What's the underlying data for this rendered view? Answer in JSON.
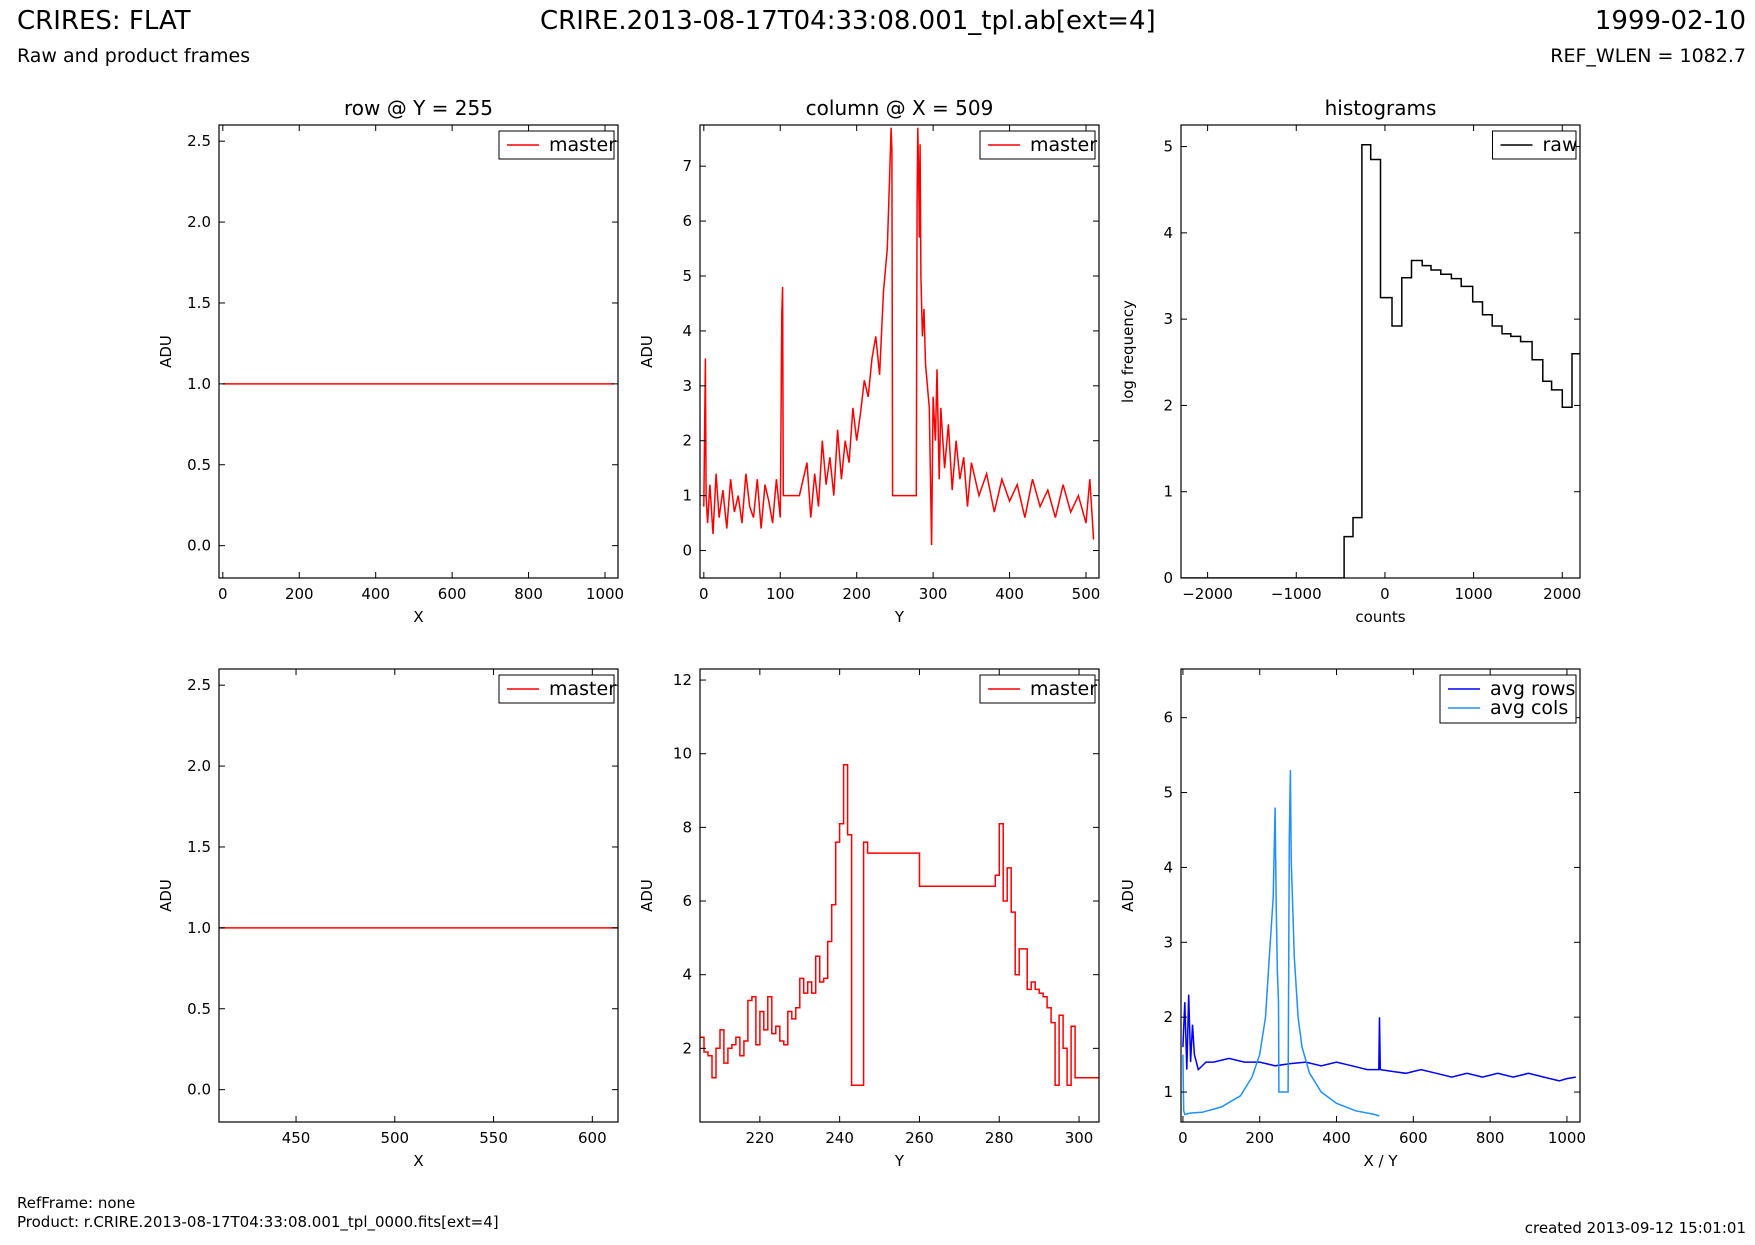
{
  "header": {
    "title": "CRIRES: FLAT",
    "subtitle": "Raw and product frames",
    "filename": "CRIRE.2013-08-17T04:33:08.001_tpl.ab[ext=4]",
    "date": "1999-02-10",
    "ref_wlen": "REF_WLEN = 1082.7"
  },
  "footer": {
    "refframe": "RefFrame: none",
    "product": "Product: r.CRIRE.2013-08-17T04:33:08.001_tpl_0000.fits[ext=4]",
    "created": "created 2013-09-12 15:01:01"
  },
  "colors": {
    "master": "#ff0000",
    "raw": "#000000",
    "avg_rows": "#0000ff",
    "avg_cols": "#1e90ff"
  },
  "chart_data": [
    {
      "type": "line",
      "title": "row @ Y = 255",
      "xlabel": "X",
      "ylabel": "ADU",
      "xlim": [
        -10,
        1034
      ],
      "ylim": [
        -0.2,
        2.6
      ],
      "xticks": [
        0,
        200,
        400,
        600,
        800,
        1000
      ],
      "yticks": [
        0.0,
        0.5,
        1.0,
        1.5,
        2.0,
        2.5
      ],
      "ytick_labels": [
        "0.0",
        "0.5",
        "1.0",
        "1.5",
        "2.0",
        "2.5"
      ],
      "legend": "upper right",
      "series": [
        {
          "name": "master",
          "color": "#ff0000",
          "x": [
            0,
            1023
          ],
          "y": [
            1.0,
            1.0
          ]
        }
      ]
    },
    {
      "type": "line",
      "title": "column @ X = 509",
      "xlabel": "Y",
      "ylabel": "ADU",
      "xlim": [
        -5,
        517
      ],
      "ylim": [
        -0.5,
        7.75
      ],
      "xticks": [
        0,
        100,
        200,
        300,
        400,
        500
      ],
      "yticks": [
        0,
        1,
        2,
        3,
        4,
        5,
        6,
        7
      ],
      "legend": "upper right",
      "series": [
        {
          "name": "master",
          "color": "#ff0000",
          "x": [
            0,
            2,
            3,
            5,
            8,
            12,
            16,
            20,
            25,
            30,
            35,
            40,
            45,
            50,
            55,
            60,
            65,
            70,
            75,
            80,
            85,
            90,
            95,
            100,
            102,
            103,
            104,
            106,
            108,
            115,
            125,
            135,
            140,
            145,
            150,
            155,
            160,
            165,
            170,
            175,
            180,
            185,
            190,
            195,
            200,
            205,
            210,
            215,
            220,
            225,
            230,
            235,
            240,
            243,
            245,
            246,
            247,
            248,
            250,
            260,
            270,
            278,
            279,
            280,
            281,
            282,
            283,
            284,
            286,
            288,
            290,
            295,
            298,
            300,
            303,
            305,
            308,
            310,
            315,
            320,
            325,
            330,
            335,
            340,
            345,
            350,
            360,
            370,
            380,
            390,
            400,
            410,
            420,
            430,
            440,
            450,
            460,
            470,
            480,
            490,
            500,
            505,
            510
          ],
          "y": [
            0.8,
            3.5,
            1.0,
            0.5,
            1.2,
            0.3,
            1.4,
            0.6,
            1.1,
            0.4,
            1.3,
            0.7,
            1.0,
            0.5,
            1.4,
            0.8,
            0.6,
            1.3,
            0.4,
            1.2,
            0.9,
            0.5,
            1.3,
            0.6,
            4.3,
            4.8,
            1.0,
            1.0,
            1.0,
            1.0,
            1.0,
            1.6,
            0.6,
            1.4,
            0.8,
            2.0,
            1.2,
            1.7,
            1.0,
            2.2,
            1.3,
            2.0,
            1.6,
            2.6,
            2.0,
            2.5,
            3.1,
            2.8,
            3.5,
            3.9,
            3.2,
            4.7,
            5.5,
            6.8,
            7.7,
            7.3,
            1.0,
            1.0,
            1.0,
            1.0,
            1.0,
            1.0,
            6.4,
            7.7,
            6.9,
            5.7,
            7.4,
            5.0,
            3.9,
            4.4,
            3.4,
            2.6,
            0.1,
            2.8,
            2.0,
            3.3,
            1.3,
            2.6,
            1.5,
            2.3,
            1.1,
            2.0,
            1.3,
            1.7,
            0.8,
            1.6,
            1.0,
            1.4,
            0.7,
            1.3,
            0.9,
            1.2,
            0.6,
            1.3,
            0.8,
            1.1,
            0.6,
            1.2,
            0.7,
            1.0,
            0.5,
            1.3,
            0.2
          ]
        }
      ]
    },
    {
      "type": "line",
      "title": "histograms",
      "xlabel": "counts",
      "ylabel": "log frequency",
      "xlim": [
        -2300,
        2200
      ],
      "ylim": [
        0,
        5.25
      ],
      "xticks": [
        -2000,
        -1000,
        0,
        1000,
        2000
      ],
      "xtick_labels": [
        "−2000",
        "−1000",
        "0",
        "1000",
        "2000"
      ],
      "yticks": [
        0,
        1,
        2,
        3,
        4,
        5
      ],
      "legend": "upper right",
      "series": [
        {
          "name": "raw",
          "color": "#000000",
          "step": true,
          "x": [
            -2300,
            -460,
            -460,
            -360,
            -360,
            -260,
            -260,
            -160,
            -160,
            -50,
            -50,
            80,
            80,
            190,
            190,
            300,
            300,
            420,
            420,
            520,
            520,
            630,
            630,
            750,
            750,
            860,
            860,
            990,
            990,
            1100,
            1100,
            1210,
            1210,
            1320,
            1320,
            1420,
            1420,
            1530,
            1530,
            1660,
            1660,
            1780,
            1780,
            1880,
            1880,
            2000,
            2000,
            2110,
            2110,
            2200
          ],
          "y": [
            0,
            0,
            0.48,
            0.48,
            0.7,
            0.7,
            5.02,
            5.02,
            4.85,
            4.85,
            3.25,
            3.25,
            2.92,
            2.92,
            3.48,
            3.48,
            3.68,
            3.68,
            3.62,
            3.62,
            3.57,
            3.57,
            3.52,
            3.52,
            3.47,
            3.47,
            3.38,
            3.38,
            3.2,
            3.2,
            3.05,
            3.05,
            2.92,
            2.92,
            2.83,
            2.83,
            2.8,
            2.8,
            2.74,
            2.74,
            2.53,
            2.53,
            2.28,
            2.28,
            2.18,
            2.18,
            1.98,
            1.98,
            2.6,
            2.6
          ]
        }
      ]
    },
    {
      "type": "line",
      "title": "",
      "xlabel": "X",
      "ylabel": "ADU",
      "xlim": [
        411,
        613
      ],
      "ylim": [
        -0.2,
        2.6
      ],
      "xticks": [
        450,
        500,
        550,
        600
      ],
      "yticks": [
        0.0,
        0.5,
        1.0,
        1.5,
        2.0,
        2.5
      ],
      "ytick_labels": [
        "0.0",
        "0.5",
        "1.0",
        "1.5",
        "2.0",
        "2.5"
      ],
      "legend": "upper right",
      "series": [
        {
          "name": "master",
          "color": "#ff0000",
          "x": [
            411,
            613
          ],
          "y": [
            1.0,
            1.0
          ]
        }
      ]
    },
    {
      "type": "line",
      "title": "",
      "xlabel": "Y",
      "ylabel": "ADU",
      "xlim": [
        205,
        305
      ],
      "ylim": [
        0,
        12.3
      ],
      "xticks": [
        220,
        240,
        260,
        280,
        300
      ],
      "yticks": [
        2,
        4,
        6,
        8,
        10,
        12
      ],
      "legend": "upper right",
      "series": [
        {
          "name": "master",
          "color": "#ff0000",
          "step": true,
          "x": [
            205,
            206,
            207,
            208,
            209,
            210,
            211,
            212,
            213,
            214,
            215,
            216,
            217,
            218,
            219,
            220,
            221,
            222,
            223,
            224,
            225,
            226,
            227,
            228,
            229,
            230,
            231,
            232,
            233,
            234,
            235,
            236,
            237,
            238,
            239,
            240,
            241,
            242,
            243,
            244,
            245,
            246,
            247,
            260,
            279,
            280,
            281,
            282,
            283,
            284,
            285,
            286,
            287,
            288,
            289,
            290,
            291,
            292,
            293,
            294,
            295,
            296,
            297,
            298,
            299,
            300,
            301,
            302,
            303,
            304,
            305
          ],
          "y": [
            2.3,
            1.9,
            1.8,
            1.2,
            2.0,
            2.5,
            1.6,
            2.0,
            2.1,
            2.3,
            1.8,
            2.2,
            3.3,
            3.4,
            2.1,
            3.0,
            2.5,
            3.4,
            2.4,
            2.6,
            2.2,
            2.1,
            3.0,
            2.8,
            3.1,
            3.9,
            3.5,
            3.8,
            3.5,
            4.5,
            3.8,
            3.9,
            4.9,
            5.9,
            7.6,
            8.1,
            9.7,
            7.8,
            1.0,
            1.0,
            1.0,
            7.6,
            7.3,
            6.4,
            6.7,
            8.1,
            6.0,
            6.9,
            5.7,
            4.0,
            4.7,
            4.7,
            3.6,
            3.8,
            3.6,
            3.5,
            3.4,
            3.1,
            2.7,
            1.0,
            2.9,
            2.0,
            1.0,
            2.6,
            1.2,
            1.2,
            1.2,
            1.2,
            1.2,
            1.2,
            1.2
          ],
          "x_offset_note": ""
        }
      ]
    },
    {
      "type": "line",
      "title": "",
      "xlabel": "X / Y",
      "ylabel": "ADU",
      "xlim": [
        -5,
        1034
      ],
      "ylim": [
        0.6,
        6.65
      ],
      "xticks": [
        0,
        200,
        400,
        600,
        800,
        1000
      ],
      "yticks": [
        1,
        2,
        3,
        4,
        5,
        6
      ],
      "legend": "upper right",
      "series": [
        {
          "name": "avg rows",
          "color": "#0000ff",
          "x": [
            0,
            5,
            10,
            15,
            20,
            25,
            30,
            40,
            60,
            80,
            120,
            160,
            200,
            240,
            280,
            320,
            360,
            400,
            440,
            480,
            510,
            512,
            514,
            540,
            580,
            620,
            660,
            700,
            740,
            780,
            820,
            860,
            900,
            940,
            980,
            1000,
            1023
          ],
          "y": [
            1.6,
            2.2,
            1.3,
            2.3,
            1.4,
            1.9,
            1.5,
            1.3,
            1.4,
            1.4,
            1.45,
            1.4,
            1.4,
            1.35,
            1.38,
            1.4,
            1.35,
            1.4,
            1.35,
            1.3,
            1.3,
            2.0,
            1.3,
            1.28,
            1.25,
            1.3,
            1.25,
            1.2,
            1.25,
            1.2,
            1.25,
            1.2,
            1.25,
            1.2,
            1.15,
            1.18,
            1.2
          ]
        },
        {
          "name": "avg cols",
          "color": "#1e90ff",
          "x": [
            0,
            2,
            5,
            20,
            50,
            100,
            150,
            180,
            200,
            215,
            225,
            235,
            240,
            243,
            246,
            249,
            250,
            260,
            274,
            277,
            280,
            282,
            285,
            290,
            300,
            310,
            330,
            360,
            400,
            450,
            500,
            511
          ],
          "y": [
            1.5,
            0.75,
            0.7,
            0.72,
            0.73,
            0.8,
            0.95,
            1.2,
            1.5,
            2.0,
            2.8,
            3.6,
            4.8,
            3.5,
            2.6,
            2.2,
            1.0,
            1.0,
            1.0,
            4.4,
            5.3,
            4.1,
            3.6,
            2.8,
            2.0,
            1.6,
            1.25,
            1.0,
            0.85,
            0.75,
            0.7,
            0.68
          ]
        }
      ]
    }
  ]
}
